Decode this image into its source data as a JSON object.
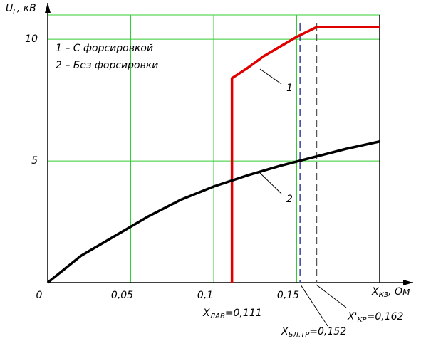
{
  "chart_data": {
    "type": "line",
    "y_label": {
      "symbol": "U",
      "subscript": "Г",
      "unit": ", кВ"
    },
    "x_label": {
      "symbol": "X",
      "subscript": "КЗ",
      "unit": ", Ом"
    },
    "xlim": [
      0,
      0.2
    ],
    "ylim": [
      0,
      11
    ],
    "xticks": [
      0,
      {
        "value": 0.05,
        "label": "0,05"
      },
      {
        "value": 0.1,
        "label": "0,1"
      },
      {
        "value": 0.15,
        "label": "0,15"
      }
    ],
    "yticks": [
      5,
      10
    ],
    "grid": true,
    "series": [
      {
        "name": "1 – С форсировкой",
        "tag": "1",
        "color": "#e00000",
        "x": [
          0.111,
          0.111,
          0.12,
          0.13,
          0.14,
          0.15,
          0.162,
          0.2
        ],
        "values": [
          0,
          8.4,
          8.8,
          9.3,
          9.7,
          10.1,
          10.5,
          10.5
        ]
      },
      {
        "name": "2 – Без форсировки",
        "tag": "2",
        "color": "#000000",
        "x": [
          0,
          0.02,
          0.04,
          0.06,
          0.08,
          0.1,
          0.12,
          0.14,
          0.16,
          0.18,
          0.2
        ],
        "values": [
          0,
          1.1,
          1.9,
          2.7,
          3.4,
          3.95,
          4.4,
          4.8,
          5.15,
          5.5,
          5.8
        ]
      }
    ],
    "annotations": [
      {
        "x": 0.111,
        "symbol": "X",
        "subscript": "ЛАВ",
        "label": "=0,111"
      },
      {
        "x": 0.152,
        "symbol": "X",
        "subscript": "БЛ.ТР",
        "label": "=0,152",
        "color": "#4040a0"
      },
      {
        "x": 0.162,
        "symbol": "X'",
        "subscript": "КР",
        "label": "=0,162",
        "color": "#555555"
      }
    ]
  }
}
